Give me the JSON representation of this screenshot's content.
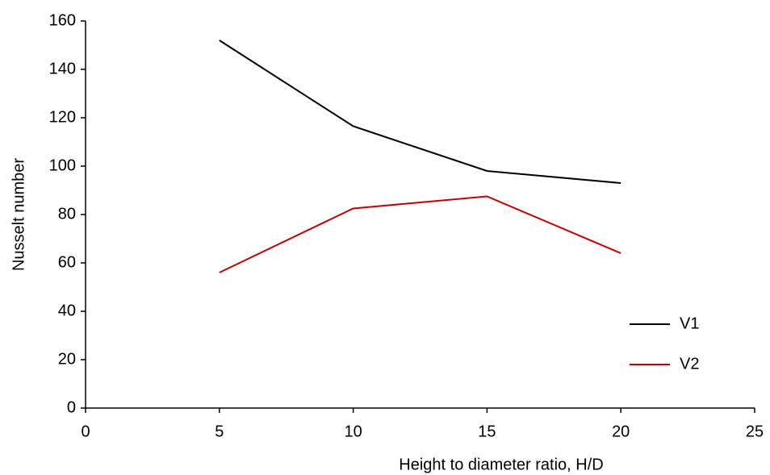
{
  "chart_data": {
    "type": "line",
    "x_label": "Height to diameter ratio, H/D",
    "y_label": "Nusselt number",
    "x": [
      5,
      10,
      15,
      20
    ],
    "series": [
      {
        "name": "V1",
        "color": "#000000",
        "values": [
          152,
          116.5,
          98,
          93
        ]
      },
      {
        "name": "V2",
        "color": "#c00000",
        "values": [
          56,
          82.5,
          87.5,
          64
        ]
      }
    ],
    "xlim": [
      0,
      25
    ],
    "xticks": [
      0,
      5,
      10,
      15,
      20,
      25
    ],
    "ylim": [
      0,
      160
    ],
    "yticks": [
      0,
      20,
      40,
      60,
      80,
      100,
      120,
      140,
      160
    ],
    "grid": false,
    "legend": "lower right"
  }
}
